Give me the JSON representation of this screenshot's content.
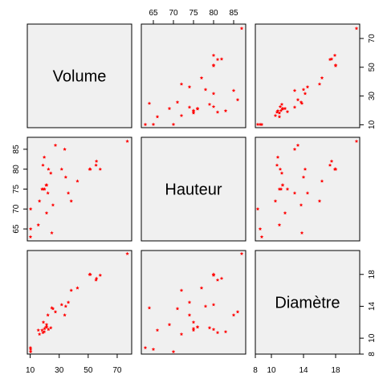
{
  "chart_data": {
    "type": "scatter",
    "layout": "pairs-matrix",
    "point_color": "#ff0000",
    "point_marker": "star",
    "panel_background": "#f0f0f0",
    "variables": [
      {
        "name": "Volume",
        "label": "Volume",
        "range": [
          8,
          80
        ],
        "ticks": [
          10,
          30,
          50,
          70
        ],
        "ticks_top_right": [
          10,
          30,
          50,
          70
        ],
        "ticks_bottom_left": [
          10,
          30,
          50,
          70
        ]
      },
      {
        "name": "Hauteur",
        "label": "Hauteur",
        "range": [
          62,
          88
        ],
        "ticks_top_right": [
          65,
          70,
          75,
          80,
          85
        ],
        "ticks_bottom_left": [
          65,
          70,
          75,
          80,
          85
        ]
      },
      {
        "name": "Diametre",
        "label": "Diamètre",
        "range": [
          8,
          21
        ],
        "ticks_top_right": [
          8,
          10,
          14,
          18
        ],
        "ticks_bottom_left": [
          8,
          10,
          14,
          18
        ]
      }
    ],
    "data": {
      "Volume": [
        10.3,
        10.3,
        10.2,
        16.4,
        18.8,
        19.7,
        15.6,
        18.2,
        22.6,
        19.9,
        24.2,
        21.0,
        21.4,
        21.3,
        19.1,
        22.2,
        33.8,
        27.4,
        25.7,
        24.9,
        34.5,
        31.7,
        36.3,
        38.3,
        42.6,
        55.4,
        55.7,
        58.3,
        51.5,
        51.0,
        77.0
      ],
      "Hauteur": [
        70,
        65,
        63,
        72,
        81,
        83,
        66,
        75,
        80,
        75,
        79,
        76,
        76,
        69,
        75,
        74,
        85,
        86,
        71,
        64,
        78,
        80,
        74,
        72,
        77,
        81,
        82,
        80,
        80,
        80,
        87
      ],
      "Diametre": [
        8.3,
        8.6,
        8.8,
        10.5,
        10.7,
        10.8,
        11.0,
        11.0,
        11.1,
        11.2,
        11.3,
        11.4,
        11.4,
        11.7,
        12.0,
        12.9,
        12.9,
        13.3,
        13.7,
        13.8,
        14.0,
        14.2,
        14.5,
        16.0,
        16.3,
        17.3,
        17.5,
        17.9,
        18.0,
        18.0,
        20.6
      ]
    }
  }
}
